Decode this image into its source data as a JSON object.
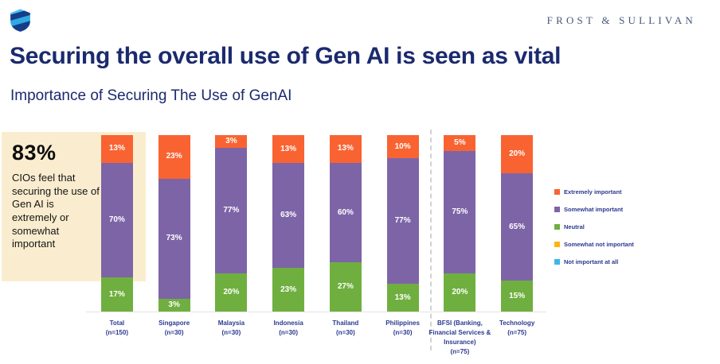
{
  "header": {
    "brand": "FROST & SULLIVAN",
    "title": "Securing the overall use of Gen AI is seen as vital",
    "subtitle": "Importance of Securing The Use of GenAI"
  },
  "callout": {
    "stat": "83%",
    "text": "CIOs feel that securing the use of Gen AI is extremely or somewhat important"
  },
  "chart_data": {
    "type": "bar",
    "stacked": true,
    "unit": "%",
    "ylim": [
      0,
      100
    ],
    "grid": false,
    "legend_position": "right",
    "categories": [
      {
        "lines": [
          "Total",
          "(n=150)"
        ]
      },
      {
        "lines": [
          "Singapore",
          "(n=30)"
        ]
      },
      {
        "lines": [
          "Malaysia",
          "(n=30)"
        ]
      },
      {
        "lines": [
          "Indonesia",
          "(n=30)"
        ]
      },
      {
        "lines": [
          "Thailand",
          "(n=30)"
        ]
      },
      {
        "lines": [
          "Philippines",
          "(n=30)"
        ]
      },
      {
        "lines": [
          "BFSI (Banking,",
          "Financial Services &",
          "Insurance)",
          "(n=75)"
        ]
      },
      {
        "lines": [
          "Technology",
          "(n=75)"
        ]
      }
    ],
    "series": [
      {
        "name": "Extremely important",
        "color": "#F96332",
        "values": [
          13,
          23,
          3,
          13,
          13,
          10,
          5,
          20
        ]
      },
      {
        "name": "Somewhat important",
        "color": "#7D64A7",
        "values": [
          70,
          73,
          77,
          63,
          60,
          77,
          75,
          65
        ]
      },
      {
        "name": "Neutral",
        "color": "#6FAF3F",
        "values": [
          17,
          3,
          20,
          23,
          27,
          13,
          20,
          15
        ]
      },
      {
        "name": "Somewhat not important",
        "color": "#FBB316",
        "values": [
          0,
          0,
          0,
          0,
          0,
          0,
          0,
          0
        ]
      },
      {
        "name": "Not important at all",
        "color": "#3BB8EA",
        "values": [
          0,
          0,
          0,
          0,
          0,
          0,
          0,
          0
        ]
      }
    ],
    "divider_after_category": "Philippines"
  }
}
